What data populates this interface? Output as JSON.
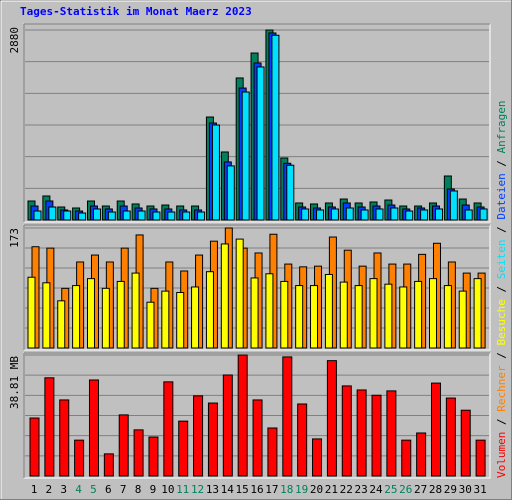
{
  "chart_data": [
    {
      "type": "bar",
      "title": "Tages-Statistik im Monat Maerz 2023",
      "ylim": [
        0,
        2880
      ],
      "yticks": [
        2880
      ],
      "series": [
        {
          "name": "Anfragen",
          "color": "#00805c",
          "values": [
            288,
            364,
            197,
            182,
            288,
            212,
            288,
            243,
            212,
            227,
            212,
            212,
            1561,
            1031,
            2153,
            2531,
            2880,
            940,
            258,
            243,
            258,
            318,
            258,
            273,
            303,
            212,
            212,
            258,
            667,
            318,
            258
          ]
        },
        {
          "name": "Dateien",
          "color": "#0040ff",
          "values": [
            212,
            288,
            152,
            136,
            212,
            167,
            212,
            182,
            167,
            167,
            152,
            152,
            1470,
            880,
            2000,
            2380,
            2835,
            860,
            197,
            182,
            197,
            258,
            197,
            212,
            227,
            167,
            182,
            212,
            470,
            227,
            197
          ]
        },
        {
          "name": "Seiten",
          "color": "#00e0ff",
          "values": [
            136,
            197,
            136,
            106,
            167,
            121,
            136,
            136,
            121,
            121,
            121,
            121,
            1440,
            820,
            1940,
            2320,
            2800,
            830,
            167,
            152,
            167,
            182,
            152,
            167,
            182,
            136,
            152,
            167,
            440,
            152,
            167
          ]
        }
      ]
    },
    {
      "type": "bar",
      "ylim": [
        0,
        173
      ],
      "yticks": [
        173
      ],
      "series": [
        {
          "name": "Besuche",
          "color": "#ffff00",
          "values": [
            102,
            94,
            68,
            90,
            100,
            86,
            96,
            108,
            66,
            82,
            80,
            88,
            110,
            150,
            157,
            101,
            107,
            96,
            90,
            90,
            106,
            95,
            90,
            100,
            92,
            88,
            96,
            100,
            90,
            82,
            100
          ]
        },
        {
          "name": "Rechner",
          "color": "#ff8000",
          "values": [
            146,
            144,
            86,
            124,
            134,
            124,
            144,
            163,
            86,
            124,
            111,
            134,
            154,
            173,
            144,
            137,
            164,
            121,
            117,
            118,
            160,
            141,
            118,
            137,
            121,
            121,
            135,
            151,
            124,
            108,
            108
          ]
        }
      ]
    },
    {
      "type": "bar",
      "ylim": [
        0,
        38.81
      ],
      "yticks": [
        {
          "value": 38.81,
          "label": "38.81 MB"
        }
      ],
      "legend_separator": " / ",
      "categories": [
        "1",
        "2",
        "3",
        "4",
        "5",
        "6",
        "7",
        "8",
        "9",
        "10",
        "11",
        "12",
        "13",
        "14",
        "15",
        "16",
        "17",
        "18",
        "19",
        "20",
        "21",
        "22",
        "23",
        "24",
        "25",
        "26",
        "27",
        "28",
        "29",
        "30",
        "31"
      ],
      "category_colors": [
        "#000000",
        "#000000",
        "#000000",
        "#00805c",
        "#00805c",
        "#000000",
        "#000000",
        "#000000",
        "#000000",
        "#000000",
        "#00805c",
        "#00805c",
        "#000000",
        "#000000",
        "#000000",
        "#000000",
        "#000000",
        "#00805c",
        "#00805c",
        "#000000",
        "#000000",
        "#000000",
        "#000000",
        "#000000",
        "#00805c",
        "#00805c",
        "#000000",
        "#000000",
        "#000000",
        "#000000",
        "#000000"
      ],
      "series": [
        {
          "name": "Volumen",
          "color": "#ff0000",
          "values": [
            18.6,
            31.5,
            24.4,
            11.5,
            30.8,
            7.1,
            19.6,
            14.8,
            12.5,
            30.2,
            17.6,
            25.7,
            23.4,
            32.4,
            38.81,
            24.4,
            15.4,
            38.2,
            23.1,
            11.9,
            37.0,
            28.9,
            27.6,
            25.9,
            27.3,
            11.5,
            13.8,
            29.8,
            25.0,
            21.1,
            11.5
          ]
        }
      ]
    }
  ]
}
